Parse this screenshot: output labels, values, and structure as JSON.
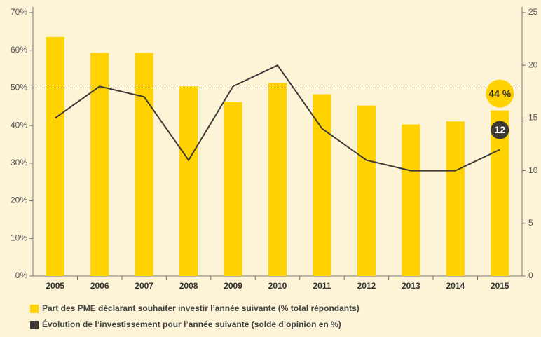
{
  "chart_data": {
    "type": "bar-line",
    "categories": [
      "2005",
      "2006",
      "2007",
      "2008",
      "2009",
      "2010",
      "2011",
      "2012",
      "2013",
      "2014",
      "2015"
    ],
    "series": [
      {
        "name": "Part des PME déclarant souhaiter investir l’année suivante (% total répondants)",
        "color": "#ffd200",
        "type": "bar",
        "values": [
          63.5,
          59.3,
          59.3,
          50.4,
          46.2,
          51.3,
          48.3,
          45.3,
          40.3,
          41.1,
          44
        ],
        "value_labels": [
          null,
          null,
          null,
          null,
          null,
          null,
          null,
          null,
          null,
          null,
          "44 %"
        ]
      },
      {
        "name": "Évolution de l’investissement pour l’année suivante (solde d’opinion en %)",
        "color": "#3d3935",
        "type": "line",
        "axis": "y2",
        "values": [
          15,
          18,
          17,
          11,
          18,
          20,
          14,
          11,
          10,
          10,
          12
        ]
      }
    ],
    "ylim": [
      0,
      70
    ],
    "yticks": [
      {
        "value": 0,
        "label": "0%"
      },
      {
        "value": 10,
        "label": "10%"
      },
      {
        "value": 20,
        "label": "20%"
      },
      {
        "value": 30,
        "label": "30%"
      },
      {
        "value": 40,
        "label": "40%"
      },
      {
        "value": 50,
        "label": "50%"
      },
      {
        "value": 60,
        "label": "60%"
      },
      {
        "value": 70,
        "label": "70%"
      }
    ],
    "y2lim": [
      0,
      25
    ],
    "y2ticks": [
      0,
      5,
      10,
      15,
      20,
      25
    ],
    "reference_line": 50
  }
}
